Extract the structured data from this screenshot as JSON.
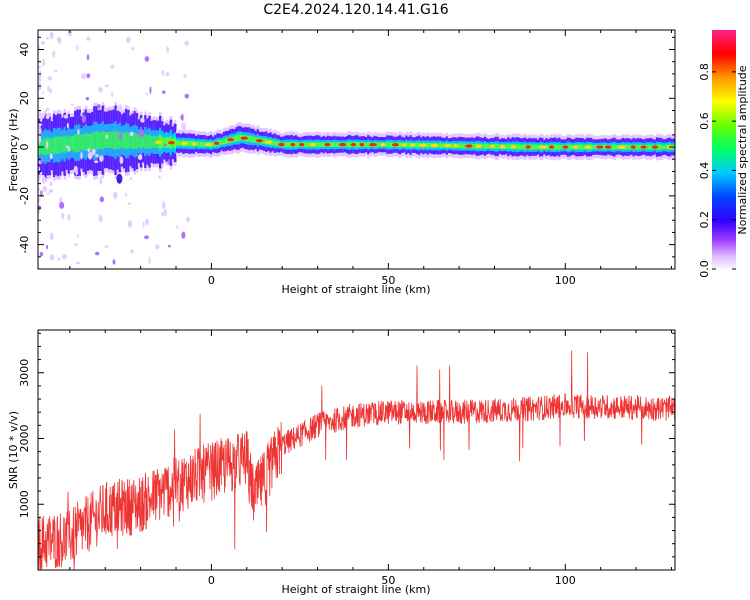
{
  "title": "C2E4.2024.120.14.41.G16",
  "chart_data": [
    {
      "type": "heatmap",
      "xlabel": "Height of straight line (km)",
      "ylabel": "Frequency (Hz)",
      "xlim": [
        -49,
        131
      ],
      "ylim": [
        -50,
        48
      ],
      "xticks": [
        0,
        50,
        100
      ],
      "yticks": [
        -40,
        -20,
        0,
        20,
        40
      ],
      "colorbar": {
        "label": "Normalized spectral amplitude",
        "ticks": [
          "0.0",
          "0.2",
          "0.4",
          "0.6",
          "0.8"
        ],
        "range": [
          0,
          0.97
        ],
        "colormap": [
          "#f8f8ff",
          "#e4c8ff",
          "#8800ff",
          "#2222ff",
          "#00c8ff",
          "#00ff66",
          "#66ff00",
          "#ffff00",
          "#ff9900",
          "#ff0000",
          "#ff2288"
        ]
      },
      "band": {
        "description_values": [
          {
            "x": -49,
            "center": 0,
            "halfwidth": 6
          },
          {
            "x": -30,
            "center": 3,
            "halfwidth": 8
          },
          {
            "x": -15,
            "center": 2,
            "halfwidth": 4
          },
          {
            "x": 0,
            "center": 1,
            "halfwidth": 3
          },
          {
            "x": 8,
            "center": 4,
            "halfwidth": 4
          },
          {
            "x": 20,
            "center": 1,
            "halfwidth": 3
          },
          {
            "x": 50,
            "center": 1,
            "halfwidth": 3
          },
          {
            "x": 90,
            "center": 0,
            "halfwidth": 3
          },
          {
            "x": 131,
            "center": 0,
            "halfwidth": 3
          }
        ]
      }
    },
    {
      "type": "line",
      "xlabel": "Height of straight line (km)",
      "ylabel": "SNR (10 * v/v)",
      "xlim": [
        -49,
        131
      ],
      "ylim": [
        0,
        3650
      ],
      "xticks": [
        0,
        50,
        100
      ],
      "yticks": [
        1000,
        2000,
        3000
      ],
      "color": "#ee3333",
      "trend": [
        {
          "x": -49,
          "y": 400
        },
        {
          "x": -40,
          "y": 500
        },
        {
          "x": -30,
          "y": 900
        },
        {
          "x": -20,
          "y": 1000
        },
        {
          "x": -10,
          "y": 1300
        },
        {
          "x": 0,
          "y": 1500
        },
        {
          "x": 10,
          "y": 1700
        },
        {
          "x": 12,
          "y": 1100
        },
        {
          "x": 20,
          "y": 1900
        },
        {
          "x": 30,
          "y": 2200
        },
        {
          "x": 40,
          "y": 2350
        },
        {
          "x": 50,
          "y": 2400
        },
        {
          "x": 70,
          "y": 2400
        },
        {
          "x": 90,
          "y": 2450
        },
        {
          "x": 100,
          "y": 2500
        },
        {
          "x": 131,
          "y": 2450
        }
      ]
    }
  ]
}
